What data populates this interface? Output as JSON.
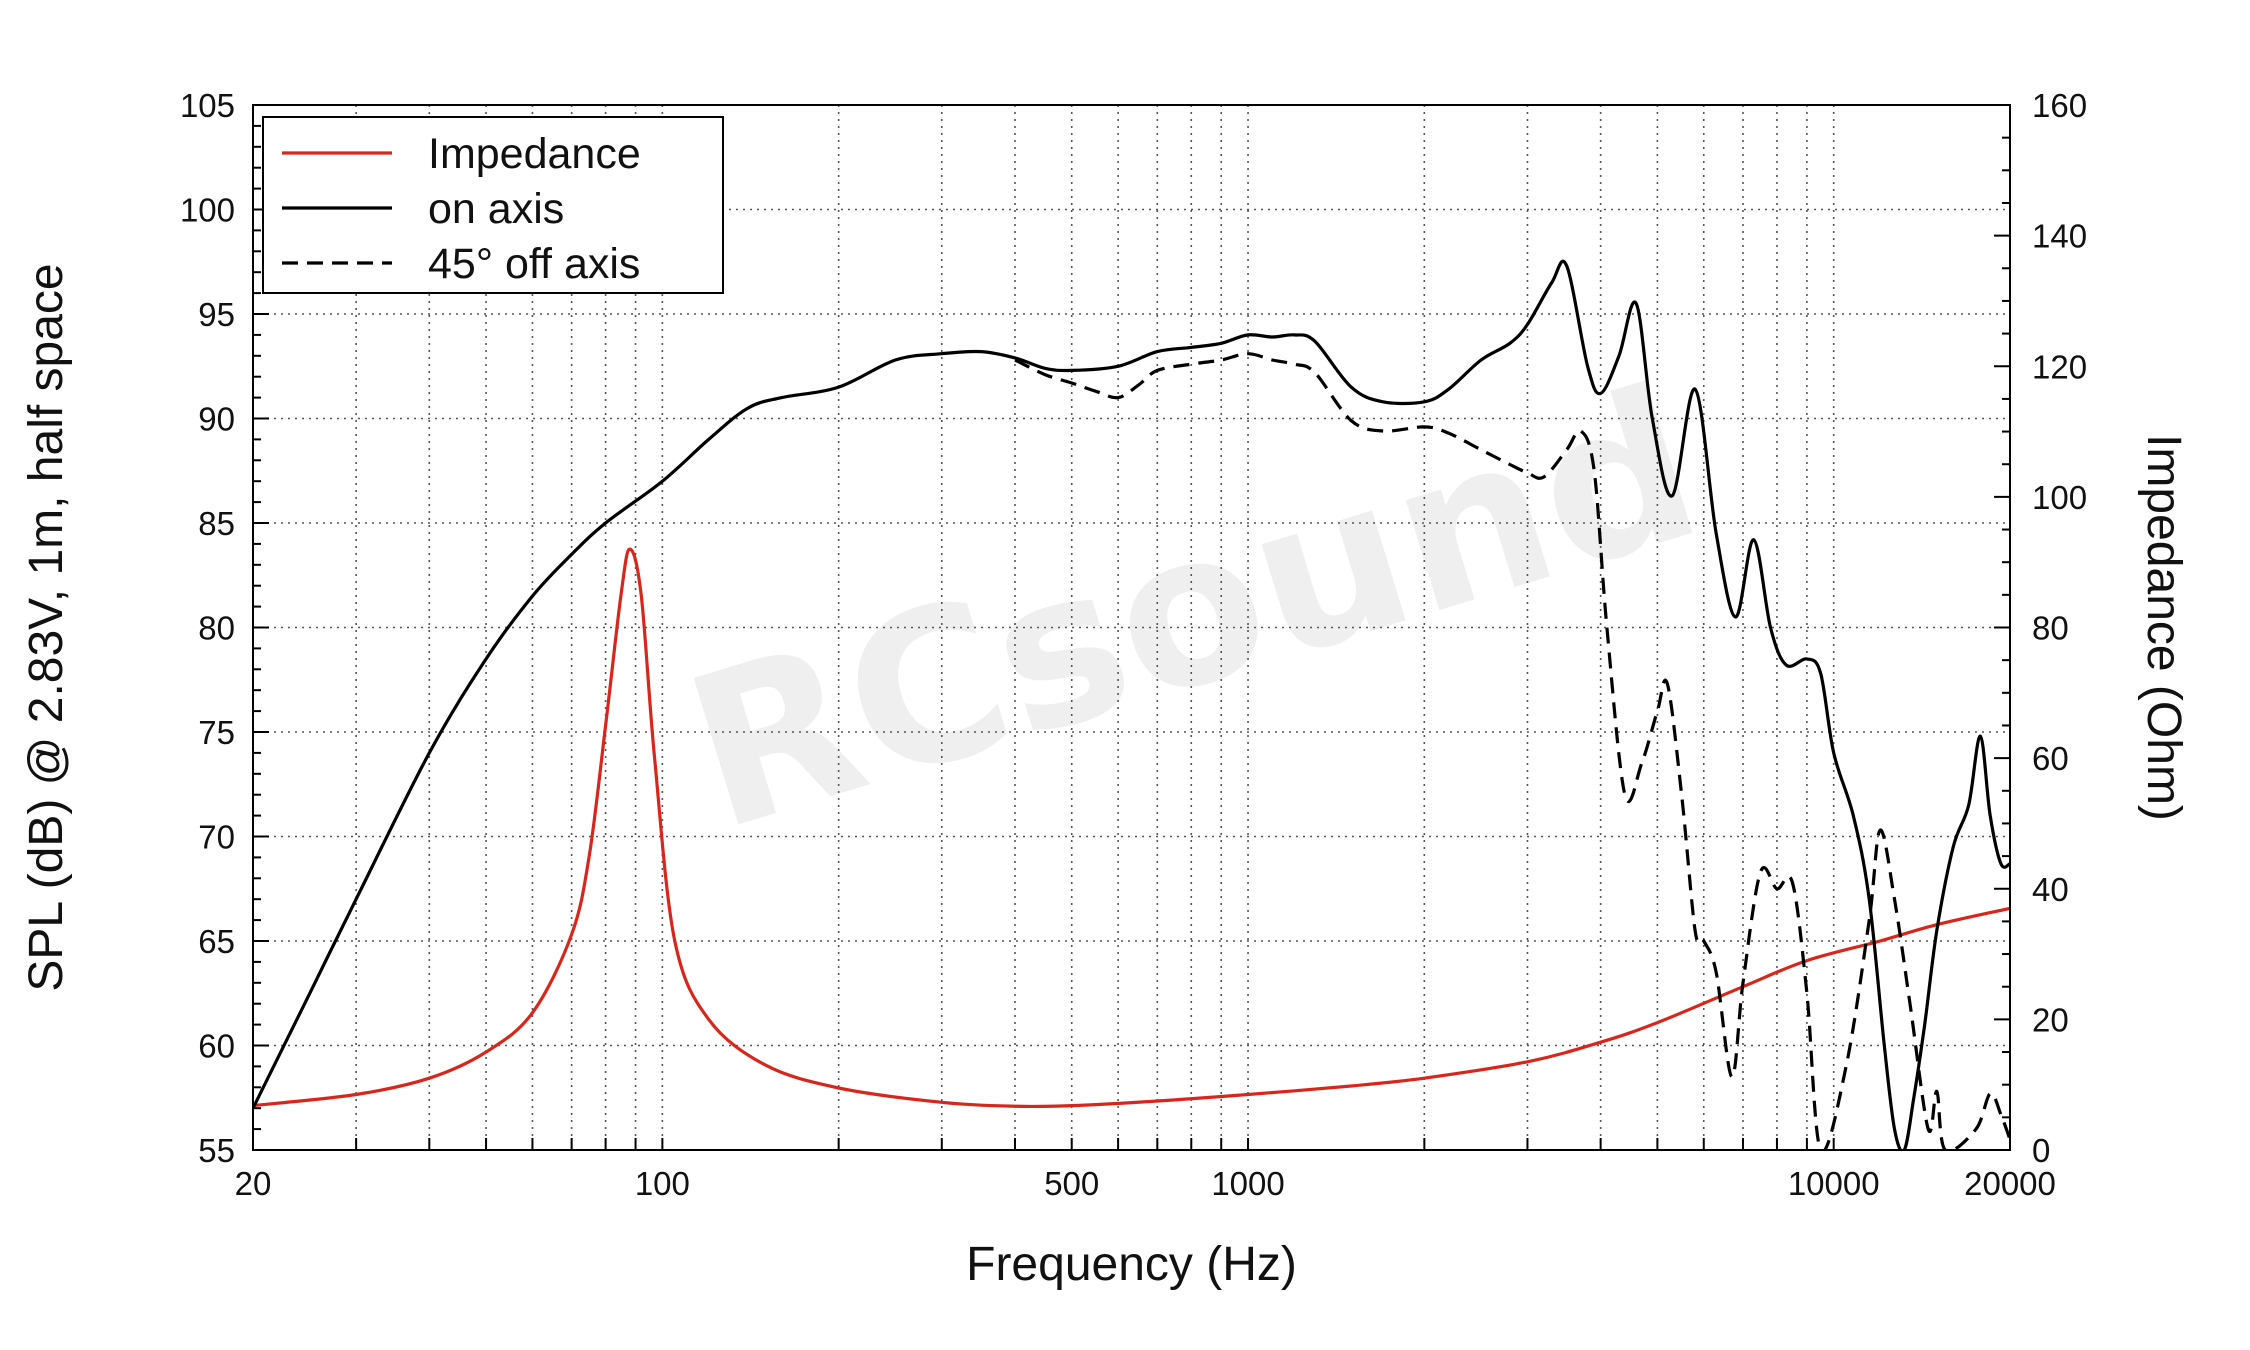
{
  "chart_data": {
    "type": "line",
    "xlabel": "Frequency (Hz)",
    "ylabel_left": "SPL (dB) @ 2.83V, 1m, half space",
    "ylabel_right": "Impedance (Ohm)",
    "x_scale": "log",
    "xlim": [
      20,
      20000
    ],
    "ylim_left": [
      55,
      105
    ],
    "ylim_right": [
      0,
      160
    ],
    "x_ticks": [
      20,
      100,
      500,
      1000,
      10000,
      20000
    ],
    "y_ticks_left": [
      55,
      60,
      65,
      70,
      75,
      80,
      85,
      90,
      95,
      100,
      105
    ],
    "y_ticks_right": [
      0,
      20,
      40,
      60,
      80,
      100,
      120,
      140,
      160
    ],
    "grid": true,
    "legend_position": "top-left",
    "watermark": "RCsound",
    "series": [
      {
        "name": "Impedance",
        "axis": "right",
        "color": "#d9261c",
        "style": "solid",
        "points": [
          [
            20,
            6.8
          ],
          [
            30,
            8.5
          ],
          [
            40,
            11
          ],
          [
            50,
            15
          ],
          [
            60,
            21
          ],
          [
            70,
            33
          ],
          [
            75,
            45
          ],
          [
            80,
            65
          ],
          [
            85,
            85
          ],
          [
            88,
            92
          ],
          [
            92,
            85
          ],
          [
            97,
            60
          ],
          [
            105,
            32
          ],
          [
            120,
            20
          ],
          [
            150,
            13
          ],
          [
            200,
            9.5
          ],
          [
            300,
            7.3
          ],
          [
            400,
            6.7
          ],
          [
            500,
            6.8
          ],
          [
            700,
            7.5
          ],
          [
            1000,
            8.5
          ],
          [
            1500,
            9.8
          ],
          [
            2000,
            11
          ],
          [
            3000,
            13.5
          ],
          [
            4000,
            16.5
          ],
          [
            5000,
            19.5
          ],
          [
            7000,
            25
          ],
          [
            9000,
            29
          ],
          [
            12000,
            32
          ],
          [
            15000,
            34.5
          ],
          [
            20000,
            37
          ]
        ]
      },
      {
        "name": "on axis",
        "axis": "left",
        "color": "#000000",
        "style": "solid",
        "points": [
          [
            20,
            57
          ],
          [
            25,
            62.5
          ],
          [
            30,
            67
          ],
          [
            40,
            74
          ],
          [
            50,
            78.5
          ],
          [
            60,
            81.5
          ],
          [
            70,
            83.5
          ],
          [
            80,
            85
          ],
          [
            100,
            87
          ],
          [
            120,
            89
          ],
          [
            140,
            90.5
          ],
          [
            160,
            91
          ],
          [
            200,
            91.5
          ],
          [
            250,
            92.8
          ],
          [
            300,
            93.1
          ],
          [
            350,
            93.2
          ],
          [
            400,
            92.9
          ],
          [
            450,
            92.4
          ],
          [
            500,
            92.3
          ],
          [
            600,
            92.5
          ],
          [
            700,
            93.2
          ],
          [
            800,
            93.4
          ],
          [
            900,
            93.6
          ],
          [
            1000,
            94.0
          ],
          [
            1100,
            93.9
          ],
          [
            1200,
            94.0
          ],
          [
            1300,
            93.7
          ],
          [
            1500,
            91.5
          ],
          [
            1700,
            90.8
          ],
          [
            2000,
            90.8
          ],
          [
            2200,
            91.4
          ],
          [
            2500,
            92.8
          ],
          [
            2800,
            93.6
          ],
          [
            3000,
            94.5
          ],
          [
            3300,
            96.5
          ],
          [
            3500,
            97.3
          ],
          [
            3800,
            92.5
          ],
          [
            4000,
            91.2
          ],
          [
            4300,
            93
          ],
          [
            4600,
            95.5
          ],
          [
            4900,
            90
          ],
          [
            5300,
            86.3
          ],
          [
            5800,
            91.4
          ],
          [
            6300,
            84.5
          ],
          [
            6800,
            80.5
          ],
          [
            7300,
            84.2
          ],
          [
            7800,
            80
          ],
          [
            8300,
            78.2
          ],
          [
            9000,
            78.5
          ],
          [
            9500,
            77.8
          ],
          [
            10000,
            74
          ],
          [
            10800,
            71
          ],
          [
            11500,
            67
          ],
          [
            12200,
            60
          ],
          [
            12700,
            56
          ],
          [
            13200,
            55
          ],
          [
            13700,
            57.5
          ],
          [
            14300,
            61
          ],
          [
            15000,
            65.5
          ],
          [
            16000,
            69.5
          ],
          [
            17000,
            71.5
          ],
          [
            17800,
            74.8
          ],
          [
            18500,
            71
          ],
          [
            19300,
            68.7
          ],
          [
            20000,
            68.7
          ]
        ]
      },
      {
        "name": "45° off axis",
        "axis": "left",
        "color": "#000000",
        "style": "dashed",
        "points": [
          [
            400,
            92.8
          ],
          [
            450,
            92.1
          ],
          [
            500,
            91.7
          ],
          [
            550,
            91.3
          ],
          [
            600,
            91
          ],
          [
            650,
            91.6
          ],
          [
            700,
            92.3
          ],
          [
            800,
            92.6
          ],
          [
            900,
            92.8
          ],
          [
            1000,
            93.1
          ],
          [
            1100,
            92.8
          ],
          [
            1200,
            92.6
          ],
          [
            1300,
            92.2
          ],
          [
            1500,
            89.9
          ],
          [
            1700,
            89.4
          ],
          [
            2000,
            89.6
          ],
          [
            2200,
            89.3
          ],
          [
            2500,
            88.5
          ],
          [
            2800,
            87.8
          ],
          [
            3000,
            87.4
          ],
          [
            3200,
            87.2
          ],
          [
            3500,
            88.5
          ],
          [
            3700,
            89.4
          ],
          [
            3900,
            87.5
          ],
          [
            4100,
            80
          ],
          [
            4400,
            72
          ],
          [
            4700,
            73.5
          ],
          [
            5000,
            76
          ],
          [
            5200,
            77.3
          ],
          [
            5500,
            72
          ],
          [
            5800,
            65.5
          ],
          [
            6000,
            65
          ],
          [
            6300,
            63.5
          ],
          [
            6700,
            58.5
          ],
          [
            7000,
            63
          ],
          [
            7500,
            68.3
          ],
          [
            8000,
            67.5
          ],
          [
            8500,
            67.8
          ],
          [
            9000,
            62.5
          ],
          [
            9500,
            55
          ],
          [
            10500,
            59
          ],
          [
            11500,
            66
          ],
          [
            12000,
            70.3
          ],
          [
            12700,
            67
          ],
          [
            13500,
            62
          ],
          [
            14500,
            56
          ],
          [
            15000,
            57.8
          ],
          [
            15500,
            55
          ],
          [
            17500,
            56
          ],
          [
            18500,
            57.7
          ],
          [
            19300,
            56.7
          ],
          [
            20000,
            55.5
          ]
        ]
      }
    ]
  }
}
